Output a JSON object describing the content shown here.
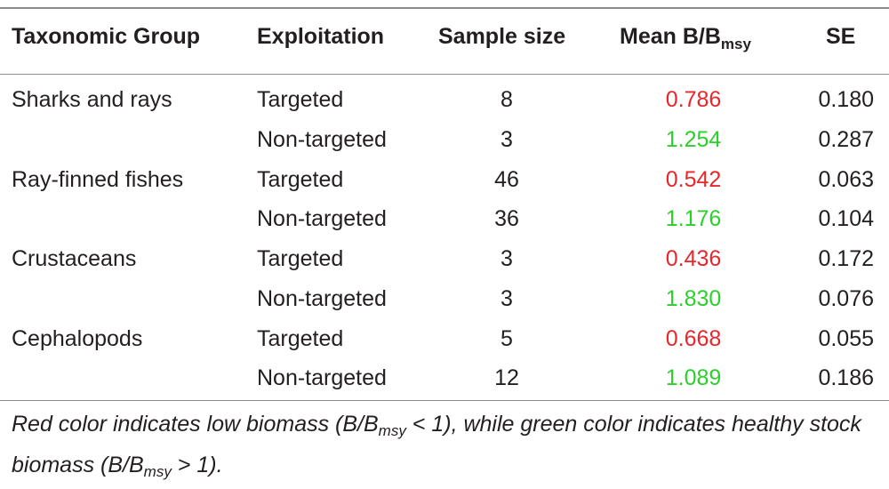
{
  "colors": {
    "low": "#e8262b",
    "healthy": "#2bd02b",
    "rule": "#8c8c8c"
  },
  "header": {
    "group": "Taxonomic Group",
    "exploitation": "Exploitation",
    "sample_size": "Sample size",
    "mean_main": "Mean B/B",
    "mean_sub": "msy",
    "se": "SE"
  },
  "rows": [
    {
      "group": "Sharks and rays",
      "exploitation": "Targeted",
      "n": "8",
      "mean": "0.786",
      "status": "low",
      "se": "0.180"
    },
    {
      "group": "",
      "exploitation": "Non-targeted",
      "n": "3",
      "mean": "1.254",
      "status": "healthy",
      "se": "0.287"
    },
    {
      "group": "Ray-finned fishes",
      "exploitation": "Targeted",
      "n": "46",
      "mean": "0.542",
      "status": "low",
      "se": "0.063"
    },
    {
      "group": "",
      "exploitation": "Non-targeted",
      "n": "36",
      "mean": "1.176",
      "status": "healthy",
      "se": "0.104"
    },
    {
      "group": "Crustaceans",
      "exploitation": "Targeted",
      "n": "3",
      "mean": "0.436",
      "status": "low",
      "se": "0.172"
    },
    {
      "group": "",
      "exploitation": "Non-targeted",
      "n": "3",
      "mean": "1.830",
      "status": "healthy",
      "se": "0.076"
    },
    {
      "group": "Cephalopods",
      "exploitation": "Targeted",
      "n": "5",
      "mean": "0.668",
      "status": "low",
      "se": "0.055"
    },
    {
      "group": "",
      "exploitation": "Non-targeted",
      "n": "12",
      "mean": "1.089",
      "status": "healthy",
      "se": "0.186"
    }
  ],
  "footnote": {
    "part1": "Red color indicates low biomass (B/B",
    "sub1": "msy",
    "part2": " < 1), while green color indicates healthy stock biomass (B/B",
    "sub2": "msy",
    "part3": " > 1)."
  }
}
